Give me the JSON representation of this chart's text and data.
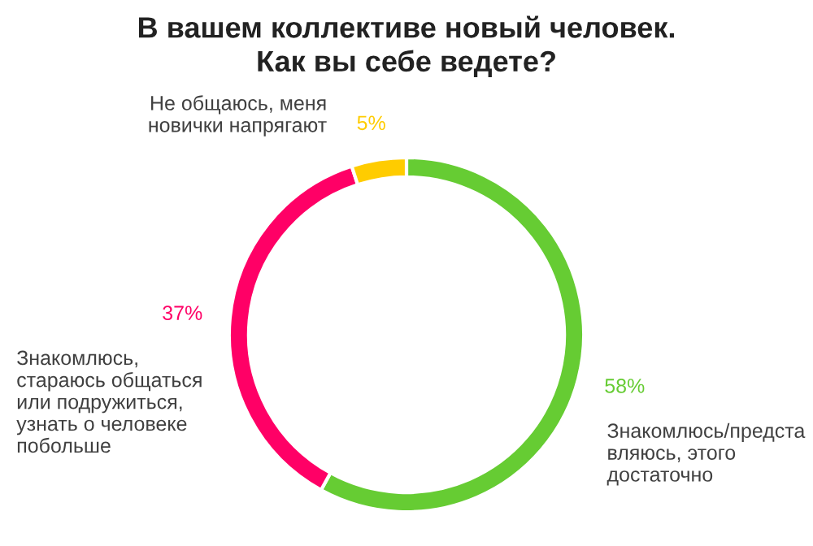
{
  "chart_data": {
    "type": "donut",
    "title": "В вашем коллективе новый человек.\nКак вы себе ведете?",
    "categories": [
      "Знакомлюсь/предста\nвляюсь, этого\nдостаточно",
      "Знакомлюсь,\nстараюсь общаться\nили подружиться,\nузнать о человеке\nпобольше",
      "Не общаюсь, меня\nновички напрягают"
    ],
    "values": [
      58,
      37,
      5
    ],
    "colors": [
      "#66cc33",
      "#ff0066",
      "#ffcc00"
    ],
    "value_labels": [
      "58%",
      "37%",
      "5%"
    ]
  }
}
